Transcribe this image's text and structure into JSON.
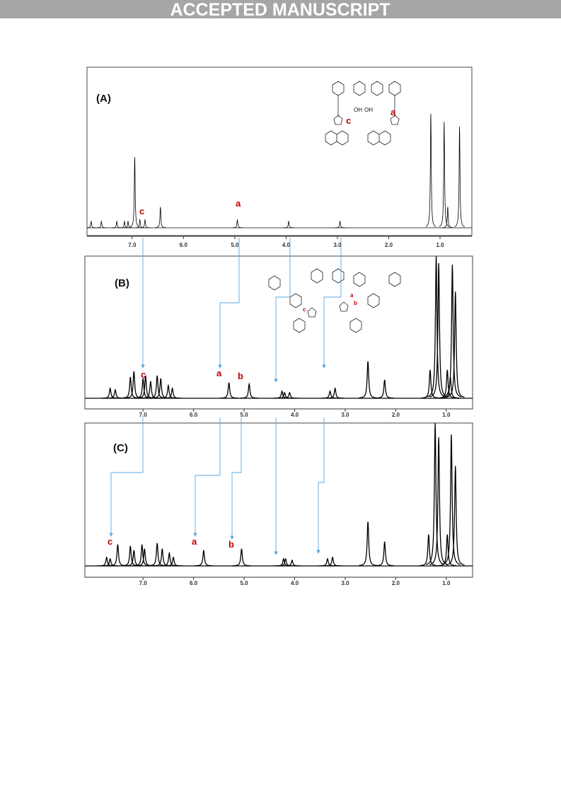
{
  "banner": "ACCEPTED MANUSCRIPT",
  "panels": [
    {
      "label": "(A)",
      "xlim": [
        7.88,
        0.38
      ],
      "ylim": [
        0,
        100
      ],
      "xticks": [
        {
          "value": 7,
          "label": "7.0"
        },
        {
          "value": 6,
          "label": "6.0"
        },
        {
          "value": 5,
          "label": "5.0"
        },
        {
          "value": 4,
          "label": "4.0"
        },
        {
          "value": 3,
          "label": "3.0"
        },
        {
          "value": 2,
          "label": "2.0"
        },
        {
          "value": 1,
          "label": "1.0"
        }
      ],
      "peak_labels": [
        "c",
        "a"
      ],
      "structure_labels": [
        "OH",
        "OH",
        "c",
        "a"
      ],
      "peaks": [
        {
          "ppm": 7.8,
          "height": 4
        },
        {
          "ppm": 7.6,
          "height": 4
        },
        {
          "ppm": 7.3,
          "height": 4
        },
        {
          "ppm": 7.15,
          "height": 4
        },
        {
          "ppm": 7.08,
          "height": 4
        },
        {
          "ppm": 6.95,
          "height": 44
        },
        {
          "ppm": 6.85,
          "height": 5
        },
        {
          "ppm": 6.75,
          "height": 5
        },
        {
          "ppm": 6.45,
          "height": 13
        },
        {
          "ppm": 4.95,
          "height": 5
        },
        {
          "ppm": 3.95,
          "height": 4
        },
        {
          "ppm": 2.95,
          "height": 4
        },
        {
          "ppm": 1.18,
          "height": 71
        },
        {
          "ppm": 0.92,
          "height": 66
        },
        {
          "ppm": 0.85,
          "height": 13
        },
        {
          "ppm": 0.62,
          "height": 63
        }
      ]
    },
    {
      "label": "(B)",
      "xlim": [
        8.15,
        0.48
      ],
      "ylim": [
        0,
        100
      ],
      "xticks": [
        {
          "value": 7,
          "label": "7.0"
        },
        {
          "value": 6,
          "label": "6.0"
        },
        {
          "value": 5,
          "label": "5.0"
        },
        {
          "value": 4,
          "label": "4.0"
        },
        {
          "value": 3,
          "label": "3.0"
        },
        {
          "value": 2,
          "label": "2.0"
        },
        {
          "value": 1,
          "label": "1.0"
        }
      ],
      "peak_labels": [
        "c",
        "a",
        "b"
      ],
      "structure_labels": [
        "c",
        "a",
        "b"
      ],
      "peaks": [
        {
          "ppm": 7.65,
          "height": 7
        },
        {
          "ppm": 7.55,
          "height": 6
        },
        {
          "ppm": 7.25,
          "height": 15
        },
        {
          "ppm": 7.18,
          "height": 19
        },
        {
          "ppm": 7.0,
          "height": 14
        },
        {
          "ppm": 6.95,
          "height": 16
        },
        {
          "ppm": 6.85,
          "height": 12
        },
        {
          "ppm": 6.72,
          "height": 16
        },
        {
          "ppm": 6.65,
          "height": 14
        },
        {
          "ppm": 6.5,
          "height": 9
        },
        {
          "ppm": 6.42,
          "height": 7
        },
        {
          "ppm": 5.3,
          "height": 11
        },
        {
          "ppm": 4.9,
          "height": 10
        },
        {
          "ppm": 4.25,
          "height": 5
        },
        {
          "ppm": 4.2,
          "height": 4
        },
        {
          "ppm": 4.1,
          "height": 4
        },
        {
          "ppm": 3.3,
          "height": 5
        },
        {
          "ppm": 3.2,
          "height": 7
        },
        {
          "ppm": 2.55,
          "height": 26
        },
        {
          "ppm": 2.22,
          "height": 13
        },
        {
          "ppm": 1.32,
          "height": 20
        },
        {
          "ppm": 1.2,
          "height": 100
        },
        {
          "ppm": 1.15,
          "height": 95
        },
        {
          "ppm": 0.98,
          "height": 20
        },
        {
          "ppm": 0.92,
          "height": 15
        },
        {
          "ppm": 0.88,
          "height": 94
        },
        {
          "ppm": 0.82,
          "height": 75
        }
      ]
    },
    {
      "label": "(C)",
      "xlim": [
        8.15,
        0.48
      ],
      "ylim": [
        0,
        100
      ],
      "xticks": [
        {
          "value": 7,
          "label": "7.0"
        },
        {
          "value": 6,
          "label": "6.0"
        },
        {
          "value": 5,
          "label": "5.0"
        },
        {
          "value": 4,
          "label": "4.0"
        },
        {
          "value": 3,
          "label": "3.0"
        },
        {
          "value": 2,
          "label": "2.0"
        },
        {
          "value": 1,
          "label": "1.0"
        }
      ],
      "peak_labels": [
        "c",
        "a",
        "b"
      ],
      "peaks": [
        {
          "ppm": 7.72,
          "height": 6
        },
        {
          "ppm": 7.65,
          "height": 5
        },
        {
          "ppm": 7.5,
          "height": 15
        },
        {
          "ppm": 7.25,
          "height": 14
        },
        {
          "ppm": 7.18,
          "height": 11
        },
        {
          "ppm": 7.02,
          "height": 15
        },
        {
          "ppm": 6.97,
          "height": 12
        },
        {
          "ppm": 6.72,
          "height": 16
        },
        {
          "ppm": 6.62,
          "height": 12
        },
        {
          "ppm": 6.48,
          "height": 9
        },
        {
          "ppm": 6.4,
          "height": 6
        },
        {
          "ppm": 5.8,
          "height": 11
        },
        {
          "ppm": 5.05,
          "height": 12
        },
        {
          "ppm": 4.22,
          "height": 5
        },
        {
          "ppm": 4.18,
          "height": 5
        },
        {
          "ppm": 4.05,
          "height": 4
        },
        {
          "ppm": 3.35,
          "height": 5
        },
        {
          "ppm": 3.25,
          "height": 6
        },
        {
          "ppm": 2.55,
          "height": 31
        },
        {
          "ppm": 2.22,
          "height": 17
        },
        {
          "ppm": 1.35,
          "height": 22
        },
        {
          "ppm": 1.22,
          "height": 100
        },
        {
          "ppm": 1.15,
          "height": 90
        },
        {
          "ppm": 0.98,
          "height": 22
        },
        {
          "ppm": 0.9,
          "height": 92
        },
        {
          "ppm": 0.82,
          "height": 70
        }
      ]
    }
  ]
}
